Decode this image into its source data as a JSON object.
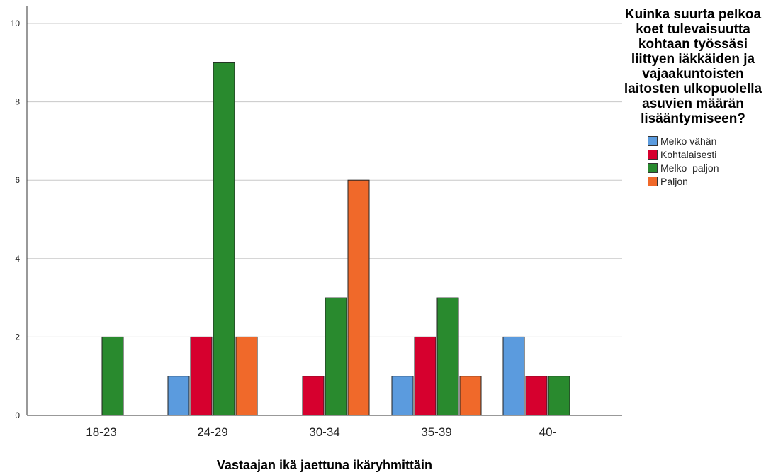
{
  "chart_data": {
    "type": "bar",
    "title": "",
    "xlabel": "Vastaajan ikä jaettuna ikäryhmittäin",
    "ylabel": "",
    "ylim": [
      0,
      10
    ],
    "y_ticks": [
      "0",
      "2",
      "4",
      "6",
      "8",
      "10"
    ],
    "grid": "horizontal",
    "categories": [
      "18-23",
      "24-29",
      "30-34",
      "35-39",
      "40-"
    ],
    "legend": {
      "placement": "right",
      "title": "Kuinka suurta pelkoa koet tulevaisuutta kohtaan työssäsi liittyen iäkkäiden ja vajaakuntoisten laitosten ulkopuolella asuvien määrän lisääntymiseen?"
    },
    "series": [
      {
        "name": "Melko vähän",
        "color": "#5b9bde",
        "values": [
          null,
          1,
          null,
          1,
          2
        ]
      },
      {
        "name": "Kohtalaisesti",
        "color": "#d6002e",
        "values": [
          null,
          2,
          1,
          2,
          1
        ]
      },
      {
        "name": "Melko  paljon",
        "color": "#298a2e",
        "values": [
          2,
          9,
          3,
          3,
          1
        ]
      },
      {
        "name": "Paljon",
        "color": "#f0692a",
        "values": [
          null,
          2,
          6,
          1,
          null
        ]
      }
    ]
  }
}
